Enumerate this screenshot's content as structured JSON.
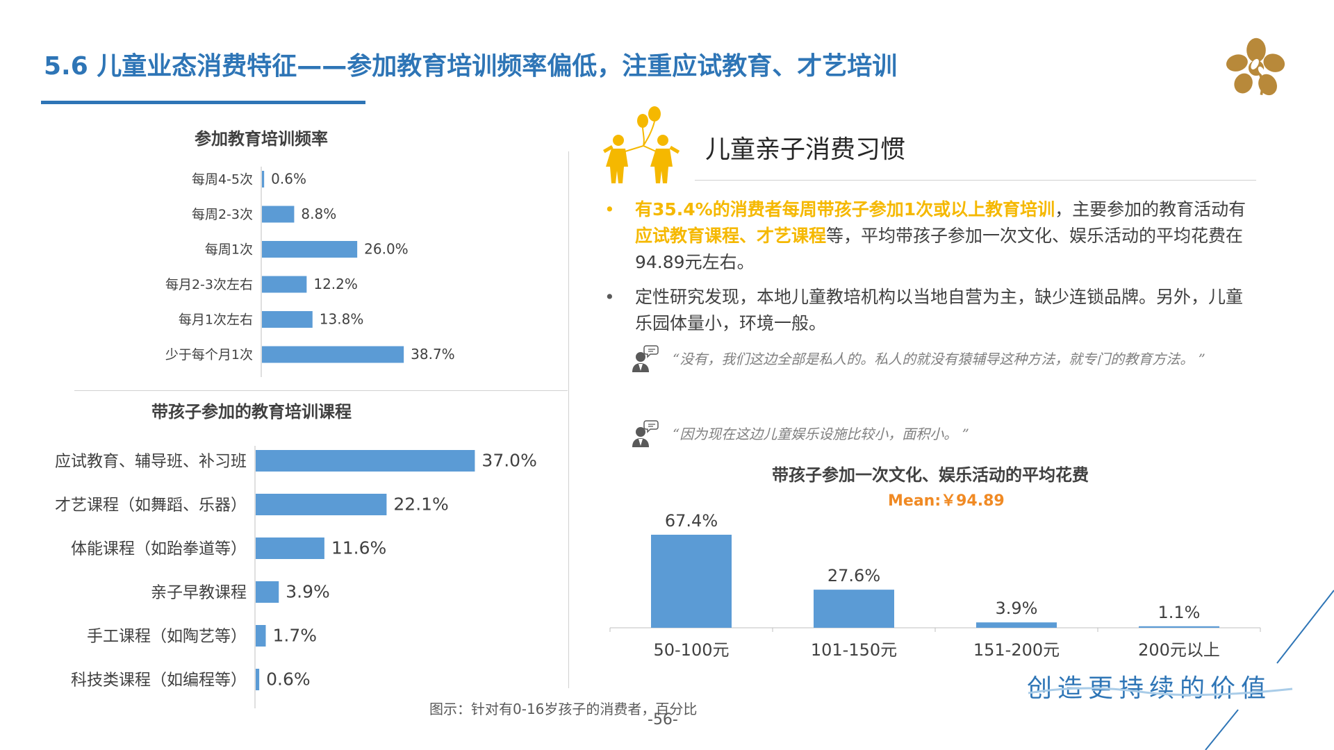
{
  "slide": {
    "title": "5.6 儿童业态消费特征——参加教育培训频率偏低，注重应试教育、才艺培训",
    "footnote": "图示：针对有0-16岁孩子的消费者，百分比",
    "page_number": "-56-",
    "slogan": "创造更持续的价值",
    "accent_color": "#2e75b6",
    "bar_color": "#5b9bd5",
    "highlight_color": "#f5b800"
  },
  "right_panel": {
    "section_title": "儿童亲子消费习惯",
    "bullets": [
      {
        "marker": "•",
        "highlight_1": "有35.4%的消费者每周带孩子参加1次或以上教育培训",
        "text_1": "，主要参加的教育活动有",
        "highlight_2": "应试教育课程、才艺课程",
        "text_2": "等，平均带孩子参加一次文化、娱乐活动的平均花费在94.89元左右。"
      },
      {
        "marker": "•",
        "text": "定性研究发现，本地儿童教培机构以当地自营为主，缺少连锁品牌。另外，儿童乐园体量小，环境一般。"
      }
    ],
    "quotes": [
      "“没有，我们这边全部是私人的。私人的就没有猿辅导这种方法，就专门的教育方法。 ”",
      "“因为现在这边儿童娱乐设施比较小，面积小。 ”"
    ],
    "mean_label": "Mean:￥94.89"
  },
  "chart_data": [
    {
      "type": "bar",
      "orientation": "horizontal",
      "title": "参加教育培训频率",
      "categories": [
        "每周4-5次",
        "每周2-3次",
        "每周1次",
        "每月2-3次左右",
        "每月1次左右",
        "少于每个月1次"
      ],
      "values": [
        0.6,
        8.8,
        26.0,
        12.2,
        13.8,
        38.7
      ],
      "value_labels": [
        "0.6%",
        "8.8%",
        "26.0%",
        "12.2%",
        "13.8%",
        "38.7%"
      ],
      "unit": "%",
      "xlim": [
        0,
        40
      ],
      "grid": false
    },
    {
      "type": "bar",
      "orientation": "horizontal",
      "title": "带孩子参加的教育培训课程",
      "categories": [
        "应试教育、辅导班、补习班",
        "才艺课程（如舞蹈、乐器）",
        "体能课程（如跆拳道等）",
        "亲子早教课程",
        "手工课程（如陶艺等）",
        "科技类课程（如编程等）"
      ],
      "values": [
        37.0,
        22.1,
        11.6,
        3.9,
        1.7,
        0.6
      ],
      "value_labels": [
        "37.0%",
        "22.1%",
        "11.6%",
        "3.9%",
        "1.7%",
        "0.6%"
      ],
      "unit": "%",
      "xlim": [
        0,
        40
      ],
      "grid": false
    },
    {
      "type": "bar",
      "orientation": "vertical",
      "title": "带孩子参加一次文化、娱乐活动的平均花费",
      "subtitle": "Mean:￥94.89",
      "categories": [
        "50-100元",
        "101-150元",
        "151-200元",
        "200元以上"
      ],
      "values": [
        67.4,
        27.6,
        3.9,
        1.1
      ],
      "value_labels": [
        "67.4%",
        "27.6%",
        "3.9%",
        "1.1%"
      ],
      "unit": "%",
      "ylim": [
        0,
        70
      ],
      "grid": false
    }
  ]
}
